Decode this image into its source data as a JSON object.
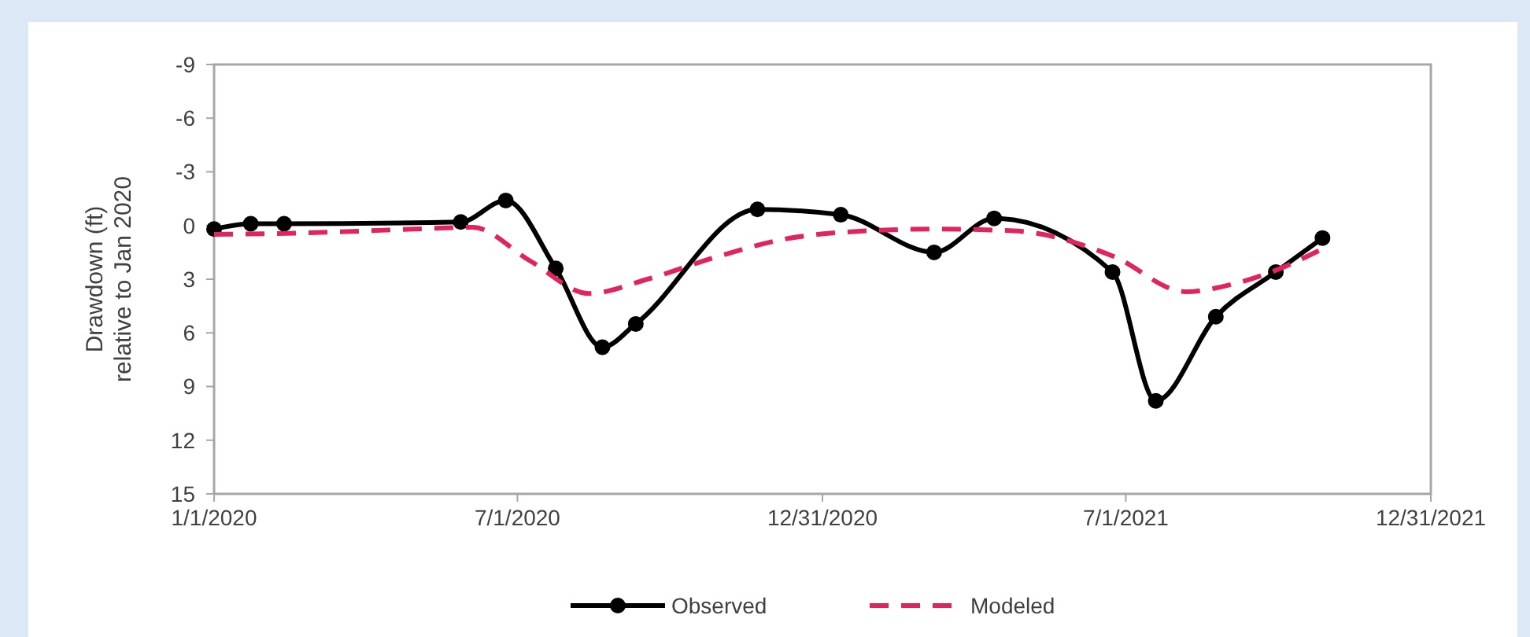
{
  "chart_data": {
    "type": "line",
    "ylabel": "Drawdown (ft)\nrelative to Jan 2020",
    "xlim": [
      "2020-01-01",
      "2021-12-31"
    ],
    "xticks": [
      {
        "value": "2020-01-01",
        "label": "1/1/2020"
      },
      {
        "value": "2020-07-01",
        "label": "7/1/2020"
      },
      {
        "value": "2020-12-31",
        "label": "12/31/2020"
      },
      {
        "value": "2021-07-01",
        "label": "7/1/2021"
      },
      {
        "value": "2021-12-31",
        "label": "12/31/2021"
      }
    ],
    "ylim": [
      15,
      -9
    ],
    "yticks": [
      -9,
      -6,
      -3,
      0,
      3,
      6,
      9,
      12,
      15
    ],
    "grid": false,
    "legend": "bottom",
    "series": [
      {
        "name": "Observed",
        "color": "#000000",
        "marker": "circle",
        "line_style": "solid",
        "x": [
          "2020-01-01",
          "2020-01-23",
          "2020-02-12",
          "2020-05-28",
          "2020-06-24",
          "2020-07-24",
          "2020-08-21",
          "2020-09-10",
          "2020-11-22",
          "2021-01-11",
          "2021-03-08",
          "2021-04-13",
          "2021-06-23",
          "2021-07-19",
          "2021-08-24",
          "2021-09-29",
          "2021-10-27"
        ],
        "values": [
          0.2,
          -0.1,
          -0.1,
          -0.2,
          -1.4,
          2.4,
          6.8,
          5.5,
          -0.9,
          -0.6,
          1.5,
          -0.4,
          2.6,
          9.8,
          5.1,
          2.6,
          0.7
        ]
      },
      {
        "name": "Modeled",
        "color": "#e0245e",
        "marker": "none",
        "line_style": "dashed",
        "x": [
          "2020-01-01",
          "2020-03-01",
          "2020-04-30",
          "2020-06-04",
          "2020-07-09",
          "2020-08-13",
          "2020-09-17",
          "2020-10-27",
          "2020-12-06",
          "2021-01-26",
          "2021-03-08",
          "2021-04-25",
          "2021-06-23",
          "2021-08-06",
          "2021-09-02",
          "2021-09-29",
          "2021-10-27"
        ],
        "values": [
          0.5,
          0.4,
          0.2,
          0.1,
          2.0,
          3.8,
          3.0,
          1.8,
          0.8,
          0.3,
          0.2,
          0.3,
          1.7,
          3.7,
          3.3,
          2.5,
          1.3
        ]
      }
    ]
  }
}
